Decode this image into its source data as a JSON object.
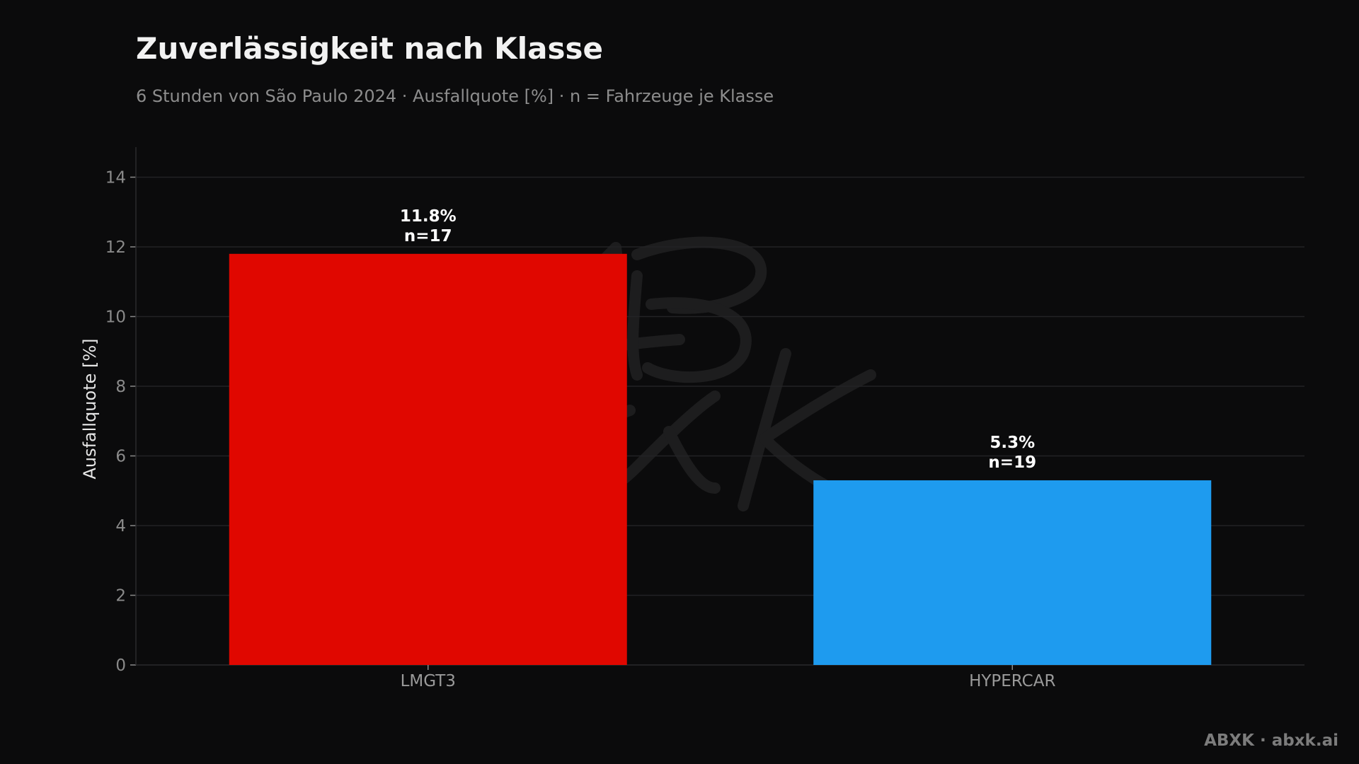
{
  "footer": "ABXK · abxk.ai",
  "watermark_text": "ABXK",
  "chart_data": {
    "type": "bar",
    "title": "Zuverlässigkeit nach Klasse",
    "subtitle": "6 Stunden von São Paulo 2024 · Ausfallquote [%] · n = Fahrzeuge je Klasse",
    "xlabel": "",
    "ylabel": "Ausfallquote [%]",
    "ylim": [
      0,
      14.7
    ],
    "yticks": [
      0,
      2,
      4,
      6,
      8,
      10,
      12,
      14
    ],
    "grid": true,
    "categories": [
      "LMGT3",
      "HYPERCAR"
    ],
    "values": [
      11.8,
      5.3
    ],
    "value_labels": [
      "11.8%",
      "5.3%"
    ],
    "n_labels": [
      "n=17",
      "n=19"
    ],
    "colors": [
      "#e00700",
      "#1e9bef"
    ]
  }
}
